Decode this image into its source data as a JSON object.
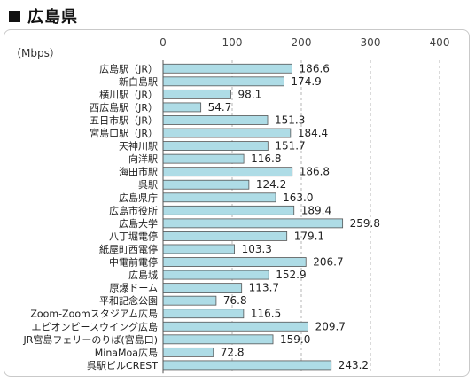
{
  "header": {
    "title": "広島県"
  },
  "chart_data": {
    "type": "bar",
    "orientation": "horizontal",
    "unit_label": "（Mbps）",
    "xlim": [
      0,
      400
    ],
    "ticks": [
      0,
      100,
      200,
      300,
      400
    ],
    "tick_labels": [
      "0",
      "100",
      "200",
      "300",
      "400"
    ],
    "grid": true,
    "bar_color": "#aedce6",
    "categories": [
      "広島駅（JR）",
      "新白島駅",
      "横川駅（JR）",
      "西広島駅（JR）",
      "五日市駅（JR）",
      "宮島口駅（JR）",
      "天神川駅",
      "向洋駅",
      "海田市駅",
      "呉駅",
      "広島県庁",
      "広島市役所",
      "広島大学",
      "八丁堀電停",
      "紙屋町西電停",
      "中電前電停",
      "広島城",
      "原爆ドーム",
      "平和記念公園",
      "Zoom-Zoomスタジアム広島",
      "エピオンピースウイング広島",
      "JR宮島フェリーのりば(宮島口)",
      "MinaMoa広島",
      "呉駅ビルCREST"
    ],
    "values": [
      186.6,
      174.9,
      98.1,
      54.7,
      151.3,
      184.4,
      151.7,
      116.8,
      186.8,
      124.2,
      163.0,
      189.4,
      259.8,
      179.1,
      103.3,
      206.7,
      152.9,
      113.7,
      76.8,
      116.5,
      209.7,
      159.0,
      72.8,
      243.2
    ],
    "value_labels": [
      "186.6",
      "174.9",
      "98.1",
      "54.7",
      "151.3",
      "184.4",
      "151.7",
      "116.8",
      "186.8",
      "124.2",
      "163.0",
      "189.4",
      "259.8",
      "179.1",
      "103.3",
      "206.7",
      "152.9",
      "113.7",
      "76.8",
      "116.5",
      "209.7",
      "159.0",
      "72.8",
      "243.2"
    ]
  }
}
